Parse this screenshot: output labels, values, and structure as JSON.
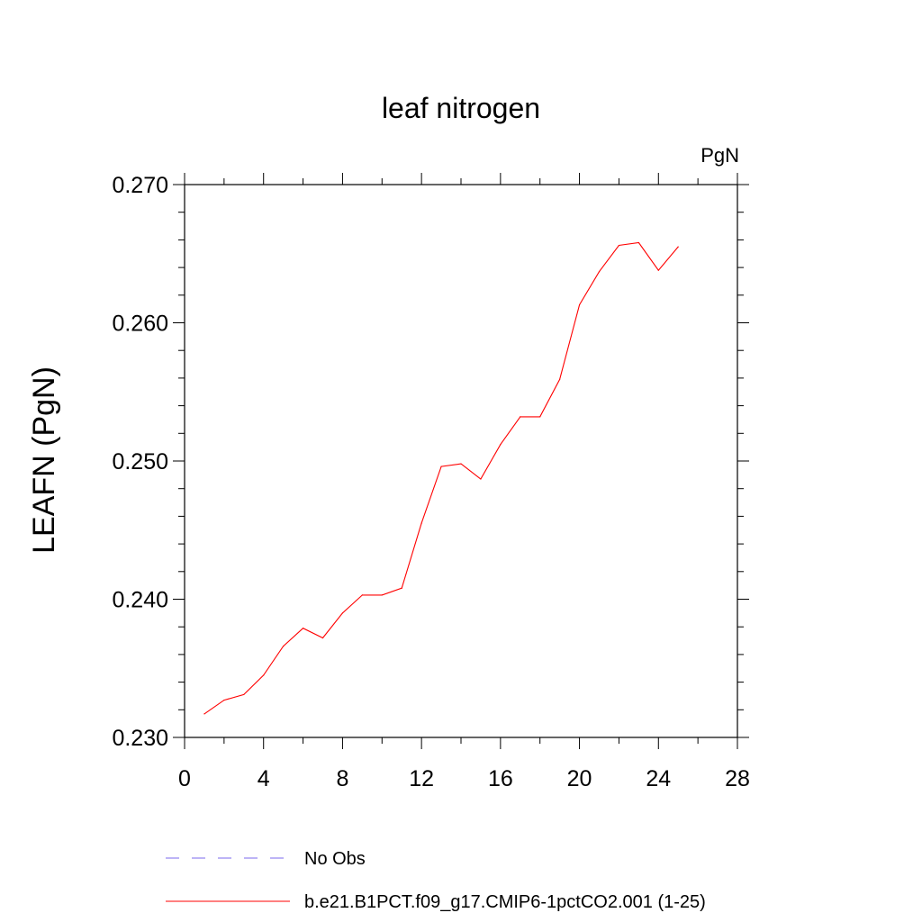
{
  "chart_data": {
    "type": "line",
    "title": "leaf nitrogen",
    "units_label": "PgN",
    "ylabel": "LEAFN  (PgN)",
    "xlabel": "",
    "xlim": [
      0,
      28
    ],
    "ylim": [
      0.23,
      0.27
    ],
    "x_ticks": [
      0,
      4,
      8,
      12,
      16,
      20,
      24,
      28
    ],
    "x_tick_labels": [
      "0",
      "4",
      "8",
      "12",
      "16",
      "20",
      "24",
      "28"
    ],
    "y_ticks": [
      0.23,
      0.24,
      0.25,
      0.26,
      0.27
    ],
    "y_tick_labels": [
      "0.230",
      "0.240",
      "0.250",
      "0.260",
      "0.270"
    ],
    "grid": false,
    "legend_position": "bottom",
    "series": [
      {
        "name": "b.e21.B1PCT.f09_g17.CMIP6-1pctCO2.001 (1-25)",
        "color": "#ff0000",
        "style": "solid",
        "x": [
          1,
          2,
          3,
          4,
          5,
          6,
          7,
          8,
          9,
          10,
          11,
          12,
          13,
          14,
          15,
          16,
          17,
          18,
          19,
          20,
          21,
          22,
          23,
          24,
          25
        ],
        "values": [
          0.2317,
          0.2327,
          0.2331,
          0.2345,
          0.2366,
          0.2379,
          0.2372,
          0.239,
          0.2403,
          0.2403,
          0.2408,
          0.2455,
          0.2496,
          0.2498,
          0.2487,
          0.2512,
          0.2532,
          0.2532,
          0.2559,
          0.2613,
          0.2637,
          0.2656,
          0.2658,
          0.2638,
          0.2655
        ]
      }
    ],
    "legend": [
      {
        "label": "No Obs",
        "color": "#7b68ee",
        "style": "dashed"
      },
      {
        "label": "b.e21.B1PCT.f09_g17.CMIP6-1pctCO2.001 (1-25)",
        "color": "#ff0000",
        "style": "solid"
      }
    ]
  }
}
